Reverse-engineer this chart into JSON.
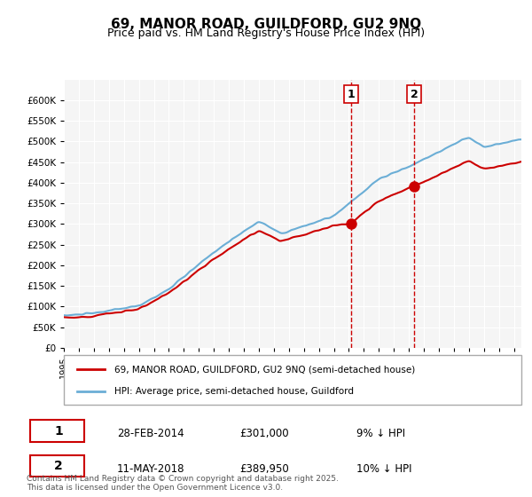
{
  "title": "69, MANOR ROAD, GUILDFORD, GU2 9NQ",
  "subtitle": "Price paid vs. HM Land Registry's House Price Index (HPI)",
  "hpi_label": "HPI: Average price, semi-detached house, Guildford",
  "property_label": "69, MANOR ROAD, GUILDFORD, GU2 9NQ (semi-detached house)",
  "transaction1_date": "28-FEB-2014",
  "transaction1_price": 301000,
  "transaction1_note": "9% ↓ HPI",
  "transaction2_date": "11-MAY-2018",
  "transaction2_price": 389950,
  "transaction2_note": "10% ↓ HPI",
  "copyright": "Contains HM Land Registry data © Crown copyright and database right 2025.\nThis data is licensed under the Open Government Licence v3.0.",
  "hpi_color": "#6baed6",
  "property_color": "#cc0000",
  "transaction_line_color": "#cc0000",
  "ylim_min": 0,
  "ylim_max": 650000,
  "background_color": "#ffffff",
  "plot_bg_color": "#f0f0f0"
}
